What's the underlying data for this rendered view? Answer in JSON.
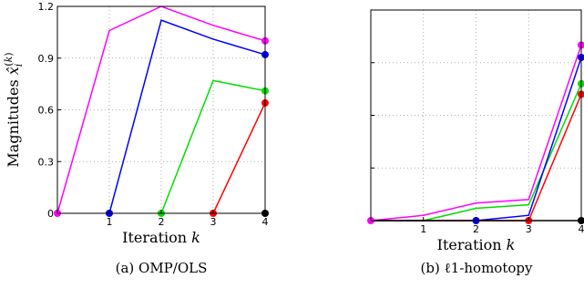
{
  "chart_data": [
    {
      "type": "line",
      "caption": "(a) OMP/OLS",
      "xlabel": "Iteration k",
      "ylabel": "Magnitudes x̂_i^(k)",
      "xlim": [
        0,
        4
      ],
      "ylim": [
        0,
        1.2
      ],
      "xticks": [
        "1",
        "2",
        "3",
        "4"
      ],
      "yticks": [
        "0",
        "0.3",
        "0.6",
        "0.9",
        "1.2"
      ],
      "grid": true,
      "series": [
        {
          "color": "#ff00ff",
          "x": [
            0,
            1,
            2,
            3,
            4
          ],
          "y": [
            0,
            1.06,
            1.2,
            1.09,
            1.0
          ]
        },
        {
          "color": "#0000ff",
          "x": [
            1,
            2,
            3,
            4
          ],
          "y": [
            0,
            1.12,
            1.01,
            0.92
          ]
        },
        {
          "color": "#00dd00",
          "x": [
            2,
            3,
            4
          ],
          "y": [
            0,
            0.77,
            0.71
          ]
        },
        {
          "color": "#ff0000",
          "x": [
            3,
            4
          ],
          "y": [
            0,
            0.64
          ]
        },
        {
          "color": "#000000",
          "x": [
            4
          ],
          "y": [
            0
          ]
        }
      ]
    },
    {
      "type": "line",
      "caption": "(b) ℓ1-homotopy",
      "xlabel": "Iteration k",
      "xlim": [
        0,
        4
      ],
      "ylim": [
        0,
        1.2
      ],
      "xticks": [
        "1",
        "2",
        "3",
        "4"
      ],
      "grid": true,
      "series": [
        {
          "color": "#ff00ff",
          "x": [
            0,
            1,
            2,
            3,
            4
          ],
          "y": [
            0,
            0.03,
            0.1,
            0.12,
            1.0
          ]
        },
        {
          "color": "#00dd00",
          "x": [
            0,
            1,
            2,
            3,
            4
          ],
          "y": [
            0,
            0.0,
            0.07,
            0.09,
            0.78
          ]
        },
        {
          "color": "#0000ff",
          "x": [
            0,
            1,
            2,
            3,
            4
          ],
          "y": [
            0,
            0.0,
            0.0,
            0.03,
            0.93
          ]
        },
        {
          "color": "#ff0000",
          "x": [
            0,
            1,
            2,
            3,
            4
          ],
          "y": [
            0,
            0.0,
            0.0,
            0.0,
            0.72
          ]
        },
        {
          "color": "#000000",
          "x": [
            0,
            1,
            2,
            3,
            4
          ],
          "y": [
            0,
            0.0,
            0.0,
            0.0,
            0.0
          ]
        }
      ],
      "markers": [
        {
          "color": "#ff00ff",
          "x": 0,
          "y": 0
        },
        {
          "color": "#0000ff",
          "x": 2,
          "y": 0
        },
        {
          "color": "#ff0000",
          "x": 3,
          "y": 0
        },
        {
          "color": "#ff00ff",
          "x": 4,
          "y": 1.0
        },
        {
          "color": "#0000ff",
          "x": 4,
          "y": 0.93
        },
        {
          "color": "#00dd00",
          "x": 4,
          "y": 0.78
        },
        {
          "color": "#ff0000",
          "x": 4,
          "y": 0.72
        },
        {
          "color": "#000000",
          "x": 4,
          "y": 0
        }
      ]
    }
  ]
}
